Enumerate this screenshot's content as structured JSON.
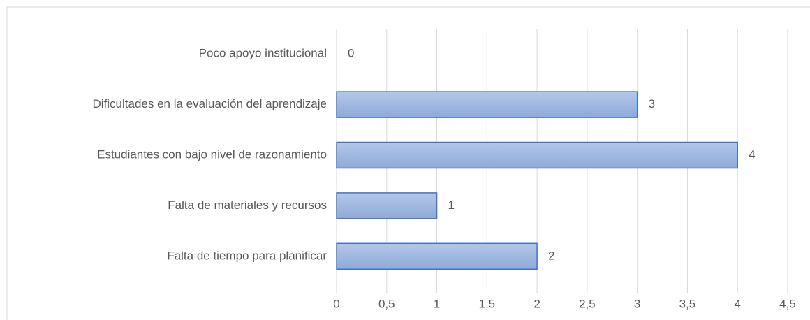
{
  "chart_data": {
    "type": "bar",
    "orientation": "horizontal",
    "categories": [
      "Poco apoyo institucional",
      "Dificultades en la evaluación del aprendizaje",
      "Estudiantes con bajo nivel de razonamiento",
      "Falta de materiales y recursos",
      "Falta de tiempo para planificar"
    ],
    "values": [
      0,
      3,
      4,
      1,
      2
    ],
    "color": "#4472c4",
    "xlim": [
      0,
      4.5
    ],
    "xticks": [
      0,
      {
        "value": 0.5,
        "label": "0,5"
      },
      1,
      {
        "value": 1.5,
        "label": "1,5"
      },
      2,
      {
        "value": 2.5,
        "label": "2,5"
      },
      3,
      {
        "value": 3.5,
        "label": "3,5"
      },
      4,
      {
        "value": 4.5,
        "label": "4,5"
      }
    ],
    "grid": true
  }
}
